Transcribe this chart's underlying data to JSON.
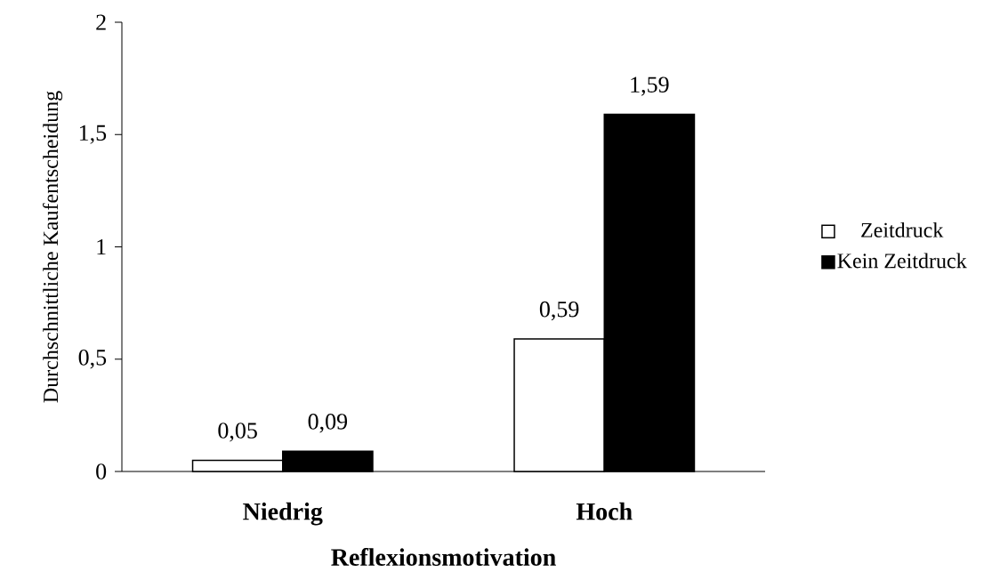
{
  "chart_data": {
    "type": "bar",
    "categories": [
      "Niedrig",
      "Hoch"
    ],
    "xlabel": "Reflexionsmotivation",
    "ylabel": "Durchschnittliche Kaufentscheidung",
    "series": [
      {
        "name": "Zeitdruck",
        "color": "#ffffff",
        "values": [
          0.05,
          0.59
        ],
        "value_labels": [
          "0,05",
          "0,59"
        ]
      },
      {
        "name": "Kein Zeitdruck",
        "color": "#000000",
        "values": [
          0.09,
          1.59
        ],
        "value_labels": [
          "0,09",
          "1,59"
        ]
      }
    ],
    "ylim": [
      0,
      2
    ],
    "yticks": [
      0,
      {
        "value": 0.5,
        "label": "0,5"
      },
      1,
      {
        "value": 1.5,
        "label": "1,5"
      },
      2
    ],
    "legend": "right"
  }
}
